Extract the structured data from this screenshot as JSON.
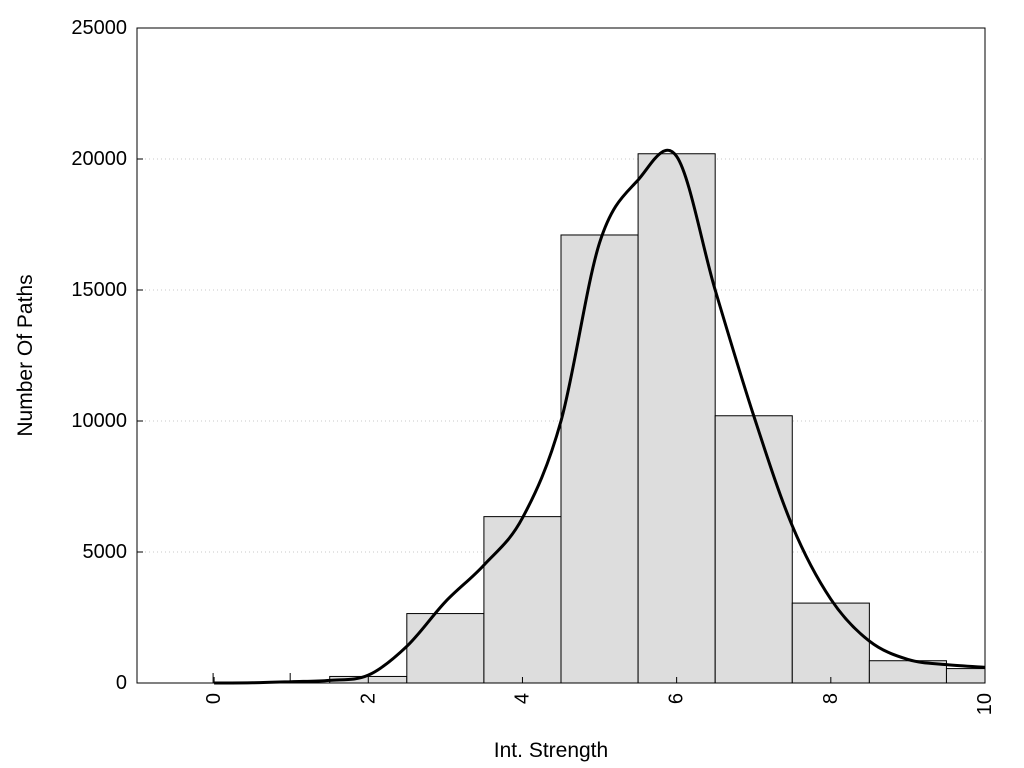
{
  "chart_data": {
    "type": "bar",
    "title": "",
    "xlabel": "Int. Strength",
    "ylabel": "Number Of Paths",
    "xlim": [
      -1,
      10
    ],
    "ylim": [
      0,
      25000
    ],
    "x_ticks": [
      0,
      2,
      4,
      6,
      8,
      10
    ],
    "y_ticks": [
      0,
      5000,
      10000,
      15000,
      20000,
      25000
    ],
    "grid": "horizontal-dotted",
    "legend": "none",
    "bar_color": "#dddddd",
    "bar_edge_color": "#000000",
    "bars": {
      "x": [
        0,
        1,
        2,
        3,
        4,
        5,
        6,
        7,
        8,
        9,
        10
      ],
      "values": [
        0,
        0,
        250,
        2650,
        6350,
        17100,
        20200,
        10200,
        3050,
        850,
        550
      ]
    },
    "curve": {
      "x": [
        0,
        0.5,
        1,
        1.5,
        2,
        2.5,
        3,
        3.5,
        4,
        4.5,
        5,
        5.5,
        6,
        6.5,
        7,
        7.5,
        8,
        8.5,
        9,
        9.5,
        10
      ],
      "values": [
        0,
        10,
        50,
        100,
        300,
        1400,
        3100,
        4500,
        6300,
        10000,
        16800,
        19200,
        20100,
        15000,
        10200,
        6000,
        3200,
        1600,
        900,
        700,
        600
      ]
    }
  }
}
